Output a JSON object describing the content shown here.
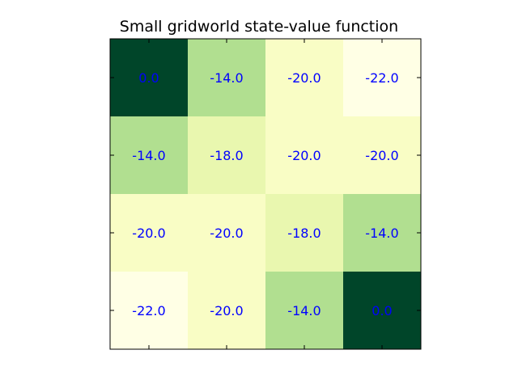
{
  "chart_data": {
    "type": "heatmap",
    "title": "Small gridworld state-value function",
    "xlabel": "",
    "ylabel": "",
    "rows": 4,
    "cols": 4,
    "values": [
      [
        0.0,
        -14.0,
        -20.0,
        -22.0
      ],
      [
        -14.0,
        -18.0,
        -20.0,
        -20.0
      ],
      [
        -20.0,
        -20.0,
        -18.0,
        -14.0
      ],
      [
        -22.0,
        -20.0,
        -14.0,
        0.0
      ]
    ],
    "labels": [
      [
        "0.0",
        "-14.0",
        "-20.0",
        "-22.0"
      ],
      [
        "-14.0",
        "-18.0",
        "-20.0",
        "-20.0"
      ],
      [
        "-20.0",
        "-20.0",
        "-18.0",
        "-14.0"
      ],
      [
        "-22.0",
        "-20.0",
        "-14.0",
        "0.0"
      ]
    ],
    "colormap": "YlGn",
    "value_range": [
      -22.0,
      0.0
    ],
    "label_color": "#0000ff",
    "axes_frame_color": "#000000",
    "tick_labels_shown": false,
    "grid": false
  }
}
